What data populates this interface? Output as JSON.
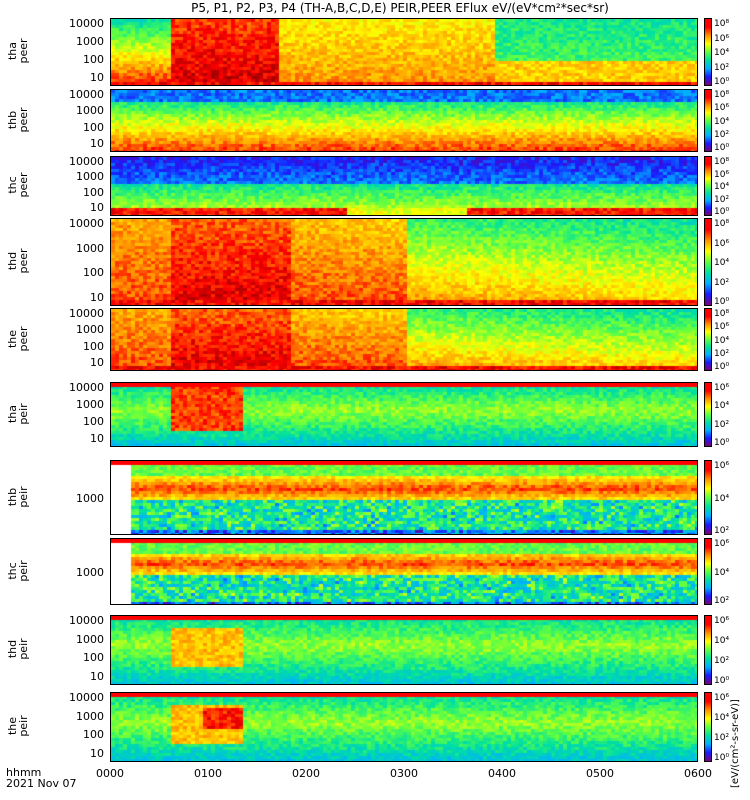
{
  "title": "P5, P1, P2, P3, P4 (TH-A,B,C,D,E) PEIR,PEER EFlux eV/(eV*cm²*sec*sr)",
  "bottom_label_1": "hhmm",
  "bottom_label_2": "2021 Nov 07",
  "unit_label": "[eV/(cm²-s-sr-eV)]",
  "chart_data": {
    "type": "heatmap",
    "x_label": "hhmm",
    "x_ticks": [
      "0000",
      "0100",
      "0200",
      "0300",
      "0400",
      "0500",
      "0600"
    ],
    "x_range": [
      "0000",
      "0600"
    ],
    "y_scale": "log",
    "colorbar_scale": "log",
    "panels": [
      {
        "name": "tha peer",
        "line1": "tha",
        "line2": "peer",
        "y_ticks": [
          "10000",
          "1000",
          "100",
          "10"
        ],
        "cbar_ticks": [
          "10⁸",
          "10⁶",
          "10⁴",
          "10²",
          "10⁰"
        ]
      },
      {
        "name": "thb peer",
        "line1": "thb",
        "line2": "peer",
        "y_ticks": [
          "10000",
          "1000",
          "100",
          "10"
        ],
        "cbar_ticks": [
          "10⁸",
          "10⁶",
          "10⁴",
          "10²",
          "10⁰"
        ]
      },
      {
        "name": "thc peer",
        "line1": "thc",
        "line2": "peer",
        "y_ticks": [
          "10000",
          "1000",
          "100",
          "10"
        ],
        "cbar_ticks": [
          "10⁸",
          "10⁶",
          "10⁴",
          "10²",
          "10⁰"
        ]
      },
      {
        "name": "thd peer",
        "line1": "thd",
        "line2": "peer",
        "y_ticks": [
          "10000",
          "1000",
          "100",
          "10"
        ],
        "cbar_ticks": [
          "10⁸",
          "10⁶",
          "10⁴",
          "10²",
          "10⁰"
        ]
      },
      {
        "name": "the peer",
        "line1": "the",
        "line2": "peer",
        "y_ticks": [
          "10000",
          "1000",
          "100",
          "10"
        ],
        "cbar_ticks": [
          "10⁸",
          "10⁶",
          "10⁴",
          "10²",
          "10⁰"
        ]
      },
      {
        "name": "tha peir",
        "line1": "tha",
        "line2": "peir",
        "y_ticks": [
          "10000",
          "1000",
          "100",
          "10"
        ],
        "cbar_ticks": [
          "10⁶",
          "10⁴",
          "10²",
          "10⁰"
        ]
      },
      {
        "name": "thb peir",
        "line1": "thb",
        "line2": "peir",
        "y_ticks": [
          "1000"
        ],
        "cbar_ticks": [
          "10⁶",
          "10⁴",
          "10²"
        ]
      },
      {
        "name": "thc peir",
        "line1": "thc",
        "line2": "peir",
        "y_ticks": [
          "1000"
        ],
        "cbar_ticks": [
          "10⁶",
          "10⁴",
          "10²"
        ]
      },
      {
        "name": "thd peir",
        "line1": "thd",
        "line2": "peir",
        "y_ticks": [
          "10000",
          "1000",
          "100",
          "10"
        ],
        "cbar_ticks": [
          "10⁶",
          "10⁴",
          "10²",
          "10⁰"
        ]
      },
      {
        "name": "the peir",
        "line1": "the",
        "line2": "peir",
        "y_ticks": [
          "10000",
          "1000",
          "100",
          "10"
        ],
        "cbar_ticks": [
          "10⁶",
          "10⁴",
          "10²",
          "10⁰"
        ]
      }
    ]
  }
}
